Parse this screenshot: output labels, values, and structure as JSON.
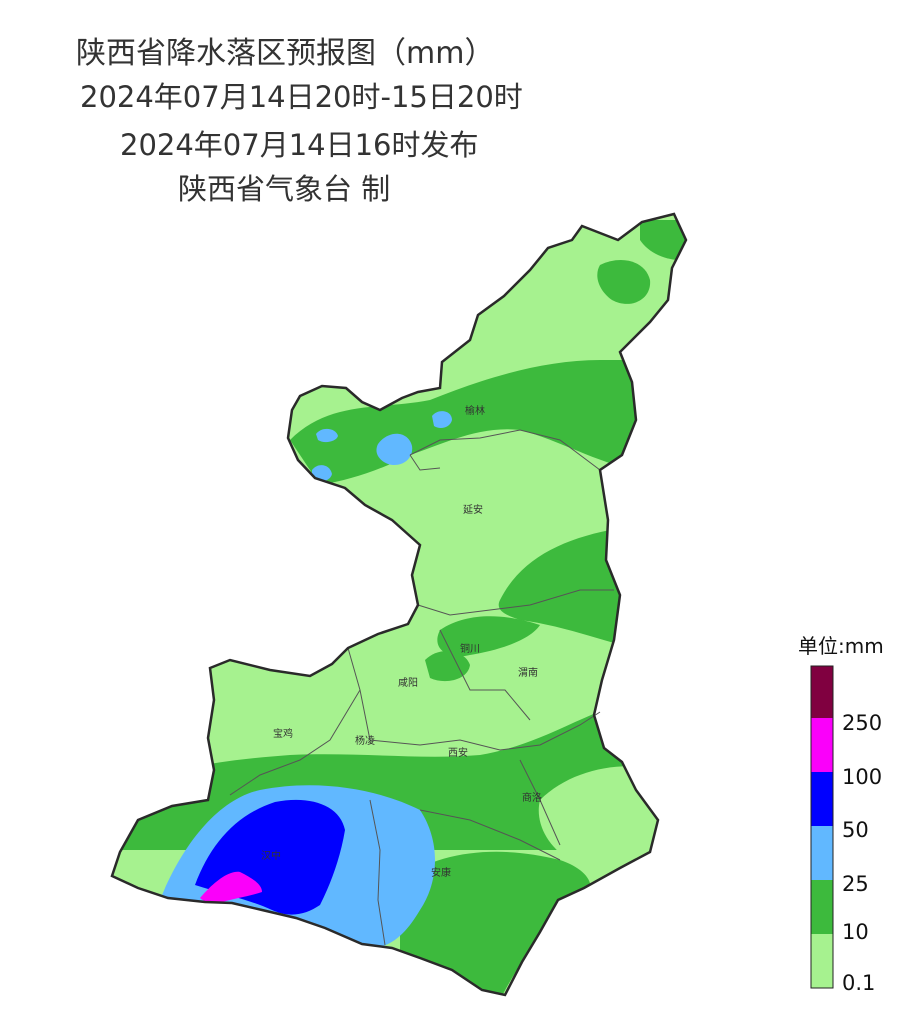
{
  "header": {
    "title": "陕西省降水落区预报图（mm）",
    "period": "2024年07月14日20时-15日20时",
    "issued": "2024年07月14日16时发布",
    "issuer": "陕西省气象台 制"
  },
  "cities": {
    "yulin": "榆林",
    "yanan": "延安",
    "tongchuan": "铜川",
    "xianyang": "咸阳",
    "weinan": "渭南",
    "baoji": "宝鸡",
    "yangling": "杨凌",
    "xian": "西安",
    "shangluo": "商洛",
    "hanzhong": "汉中",
    "ankang": "安康"
  },
  "legend": {
    "title": "单位:mm",
    "labels": [
      "250",
      "100",
      "50",
      "25",
      "10",
      "0.1"
    ]
  },
  "colors": {
    "r0_1": "#a6f28f",
    "r10": "#3dba3d",
    "r25": "#61b8ff",
    "r50": "#0000ff",
    "r100": "#fa00fa",
    "r250": "#800040",
    "boundary": "#2a2a2a"
  }
}
